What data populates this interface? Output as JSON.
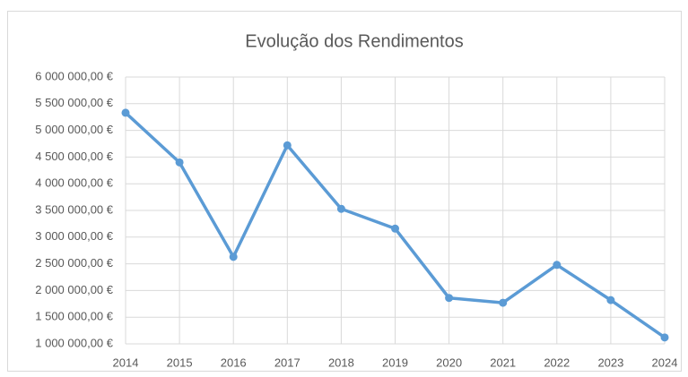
{
  "chart_data": {
    "type": "line",
    "title": "Evolução dos Rendimentos",
    "categories": [
      "2014",
      "2015",
      "2016",
      "2017",
      "2018",
      "2019",
      "2020",
      "2021",
      "2022",
      "2023",
      "2024"
    ],
    "series": [
      {
        "name": "Rendimentos",
        "color": "#5b9bd5",
        "values": [
          5330000,
          4400000,
          2630000,
          4720000,
          3530000,
          3160000,
          1860000,
          1770000,
          2480000,
          1820000,
          1120000
        ]
      }
    ],
    "ylim": [
      1000000,
      6000000
    ],
    "yticks": [
      {
        "value": 1000000,
        "label": "1 000 000,00 €"
      },
      {
        "value": 1500000,
        "label": "1 500 000,00 €"
      },
      {
        "value": 2000000,
        "label": "2 000 000,00 €"
      },
      {
        "value": 2500000,
        "label": "2 500 000,00 €"
      },
      {
        "value": 3000000,
        "label": "3 000 000,00 €"
      },
      {
        "value": 3500000,
        "label": "3 500 000,00 €"
      },
      {
        "value": 4000000,
        "label": "4 000 000,00 €"
      },
      {
        "value": 4500000,
        "label": "4 500 000,00 €"
      },
      {
        "value": 5000000,
        "label": "5 000 000,00 €"
      },
      {
        "value": 5500000,
        "label": "5 500 000,00 €"
      },
      {
        "value": 6000000,
        "label": "6 000 000,00 €"
      }
    ],
    "grid": true,
    "legend": false
  }
}
